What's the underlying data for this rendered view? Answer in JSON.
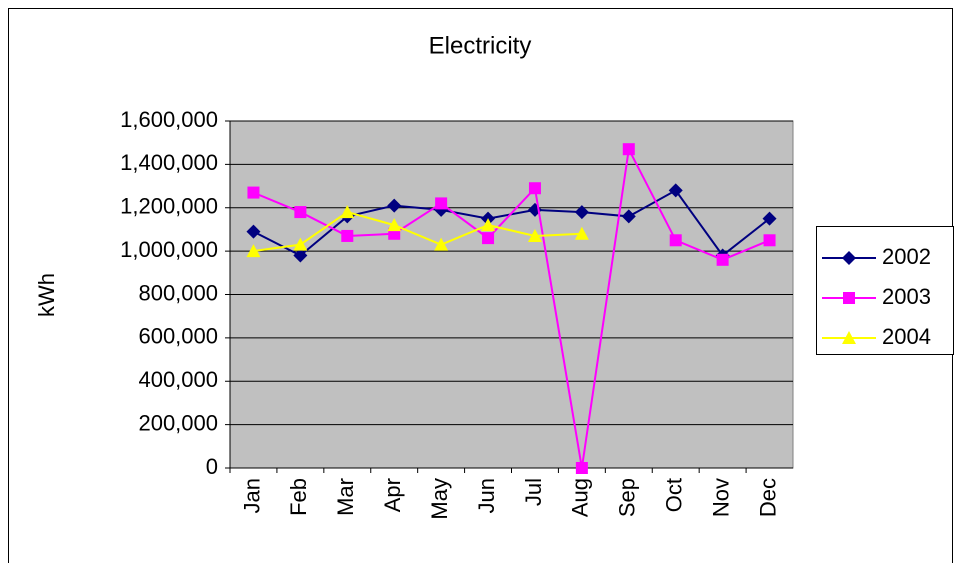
{
  "chart_data": {
    "type": "line",
    "title": "Electricity",
    "y_label": "kWh",
    "categories": [
      "Jan",
      "Feb",
      "Mar",
      "Apr",
      "May",
      "Jun",
      "Jul",
      "Aug",
      "Sep",
      "Oct",
      "Nov",
      "Dec"
    ],
    "series": [
      {
        "name": "2002",
        "color": "#000080",
        "marker": "diamond",
        "values": [
          1090000,
          980000,
          1160000,
          1210000,
          1190000,
          1150000,
          1190000,
          1180000,
          1160000,
          1280000,
          980000,
          1150000
        ]
      },
      {
        "name": "2003",
        "color": "#ff00ff",
        "marker": "square",
        "values": [
          1270000,
          1180000,
          1070000,
          1080000,
          1220000,
          1060000,
          1290000,
          0,
          1470000,
          1050000,
          960000,
          1050000
        ]
      },
      {
        "name": "2004",
        "color": "#ffff00",
        "marker": "triangle",
        "values": [
          1000000,
          1030000,
          1180000,
          1120000,
          1030000,
          1120000,
          1070000,
          1080000,
          null,
          null,
          null,
          null
        ]
      }
    ],
    "ylim": [
      0,
      1600000
    ],
    "yticks": [
      0,
      {
        "value": 200000,
        "label": "200,000"
      },
      {
        "value": 400000,
        "label": "400,000"
      },
      {
        "value": 600000,
        "label": "600,000"
      },
      {
        "value": 800000,
        "label": "800,000"
      },
      {
        "value": 1000000,
        "label": "1,000,000"
      },
      {
        "value": 1200000,
        "label": "1,200,000"
      },
      {
        "value": 1400000,
        "label": "1,400,000"
      },
      {
        "value": 1600000,
        "label": "1,600,000"
      }
    ],
    "grid": true,
    "legend": "right"
  }
}
